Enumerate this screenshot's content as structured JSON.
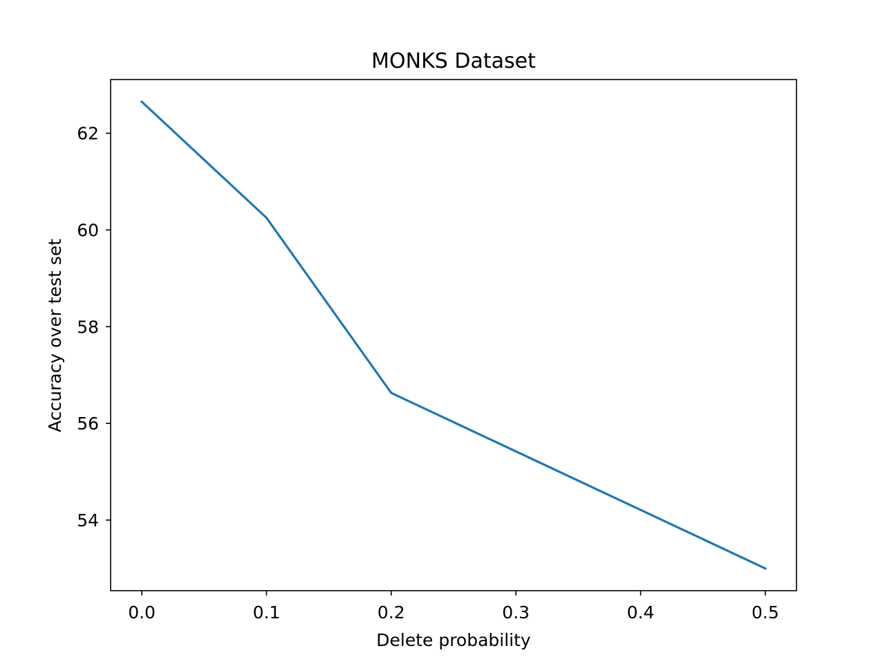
{
  "chart_data": {
    "type": "line",
    "title": "MONKS Dataset",
    "xlabel": "Delete probability",
    "ylabel": "Accuracy over test set",
    "x": [
      0.0,
      0.1,
      0.2,
      0.5
    ],
    "series": [
      {
        "values": [
          62.65,
          60.25,
          56.63,
          53.0
        ],
        "color": "#1f77b4"
      }
    ],
    "xlim": [
      -0.025,
      0.525
    ],
    "ylim": [
      52.54,
      63.11
    ],
    "xticks": [
      0.0,
      0.1,
      0.2,
      0.3,
      0.4,
      0.5
    ],
    "xtick_labels": [
      "0.0",
      "0.1",
      "0.2",
      "0.3",
      "0.4",
      "0.5"
    ],
    "yticks": [
      54,
      56,
      58,
      60,
      62
    ],
    "ytick_labels": [
      "54",
      "56",
      "58",
      "60",
      "62"
    ],
    "grid": false,
    "legend": "none"
  }
}
